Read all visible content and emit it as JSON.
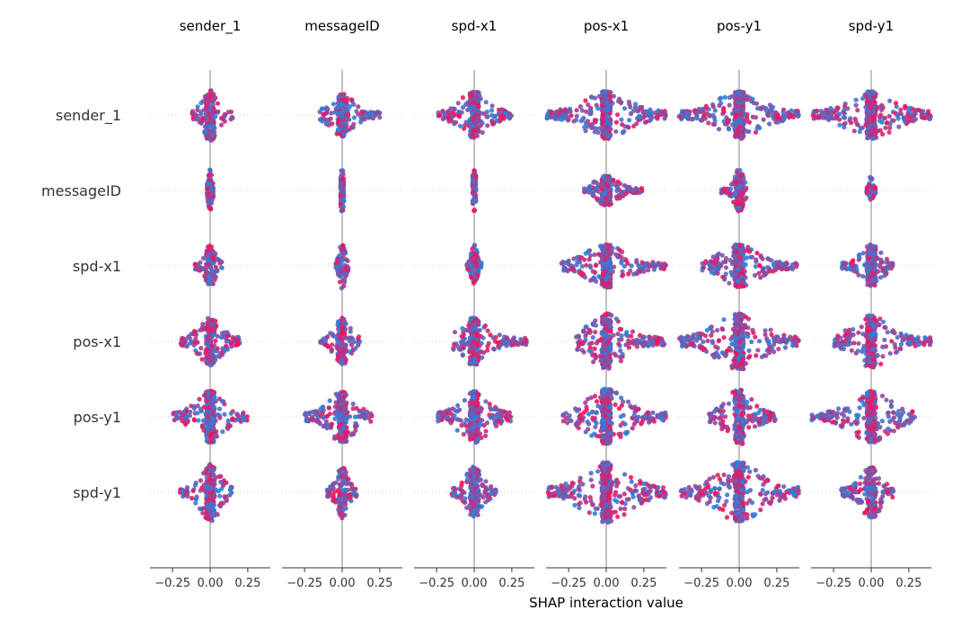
{
  "chart_data": {
    "type": "scatter",
    "subtype": "shap-interaction-beeswarm-matrix",
    "columns": [
      "sender_1",
      "messageID",
      "spd-x1",
      "pos-x1",
      "pos-y1",
      "spd-y1"
    ],
    "rows": [
      "sender_1",
      "messageID",
      "spd-x1",
      "pos-x1",
      "pos-y1",
      "spd-y1"
    ],
    "xlabel": "SHAP interaction value",
    "xticks": [
      "−0.25",
      "0.00",
      "0.25"
    ],
    "xtick_values": [
      -0.25,
      0.0,
      0.25
    ],
    "xlim": [
      -0.4,
      0.4
    ],
    "colors": {
      "low": "#1e88e5",
      "high": "#ff0d57",
      "mid": "#8e3fc0",
      "zero_line": "#999999",
      "axis": "#333333"
    },
    "cells": [
      [
        {
          "min": -0.12,
          "max": 0.15,
          "v": 0.24
        },
        {
          "min": -0.15,
          "max": 0.25,
          "v": 0.2
        },
        {
          "min": -0.25,
          "max": 0.25,
          "v": 0.22
        },
        {
          "min": -0.4,
          "max": 0.4,
          "v": 0.22
        },
        {
          "min": -0.4,
          "max": 0.4,
          "v": 0.22
        },
        {
          "min": -0.4,
          "max": 0.4,
          "v": 0.22
        }
      ],
      [
        {
          "min": -0.02,
          "max": 0.02,
          "v": 0.22
        },
        {
          "min": -0.01,
          "max": 0.01,
          "v": 0.22
        },
        {
          "min": -0.01,
          "max": 0.01,
          "v": 0.2
        },
        {
          "min": -0.15,
          "max": 0.25,
          "v": 0.14
        },
        {
          "min": -0.12,
          "max": 0.05,
          "v": 0.2
        },
        {
          "min": -0.03,
          "max": 0.03,
          "v": 0.15
        }
      ],
      [
        {
          "min": -0.1,
          "max": 0.08,
          "v": 0.2
        },
        {
          "min": -0.05,
          "max": 0.05,
          "v": 0.22
        },
        {
          "min": -0.05,
          "max": 0.05,
          "v": 0.2
        },
        {
          "min": -0.3,
          "max": 0.4,
          "v": 0.2
        },
        {
          "min": -0.25,
          "max": 0.4,
          "v": 0.2
        },
        {
          "min": -0.2,
          "max": 0.15,
          "v": 0.2
        }
      ],
      [
        {
          "min": -0.2,
          "max": 0.2,
          "v": 0.22
        },
        {
          "min": -0.15,
          "max": 0.12,
          "v": 0.22
        },
        {
          "min": -0.15,
          "max": 0.35,
          "v": 0.22
        },
        {
          "min": -0.2,
          "max": 0.4,
          "v": 0.26
        },
        {
          "min": -0.4,
          "max": 0.4,
          "v": 0.26
        },
        {
          "min": -0.25,
          "max": 0.4,
          "v": 0.24
        }
      ],
      [
        {
          "min": -0.25,
          "max": 0.25,
          "v": 0.24
        },
        {
          "min": -0.25,
          "max": 0.2,
          "v": 0.24
        },
        {
          "min": -0.25,
          "max": 0.25,
          "v": 0.24
        },
        {
          "min": -0.3,
          "max": 0.4,
          "v": 0.26
        },
        {
          "min": -0.2,
          "max": 0.25,
          "v": 0.26
        },
        {
          "min": -0.4,
          "max": 0.3,
          "v": 0.24
        }
      ],
      [
        {
          "min": -0.2,
          "max": 0.15,
          "v": 0.27
        },
        {
          "min": -0.1,
          "max": 0.1,
          "v": 0.24
        },
        {
          "min": -0.15,
          "max": 0.15,
          "v": 0.24
        },
        {
          "min": -0.4,
          "max": 0.4,
          "v": 0.28
        },
        {
          "min": -0.4,
          "max": 0.4,
          "v": 0.28
        },
        {
          "min": -0.2,
          "max": 0.15,
          "v": 0.24
        }
      ]
    ]
  }
}
